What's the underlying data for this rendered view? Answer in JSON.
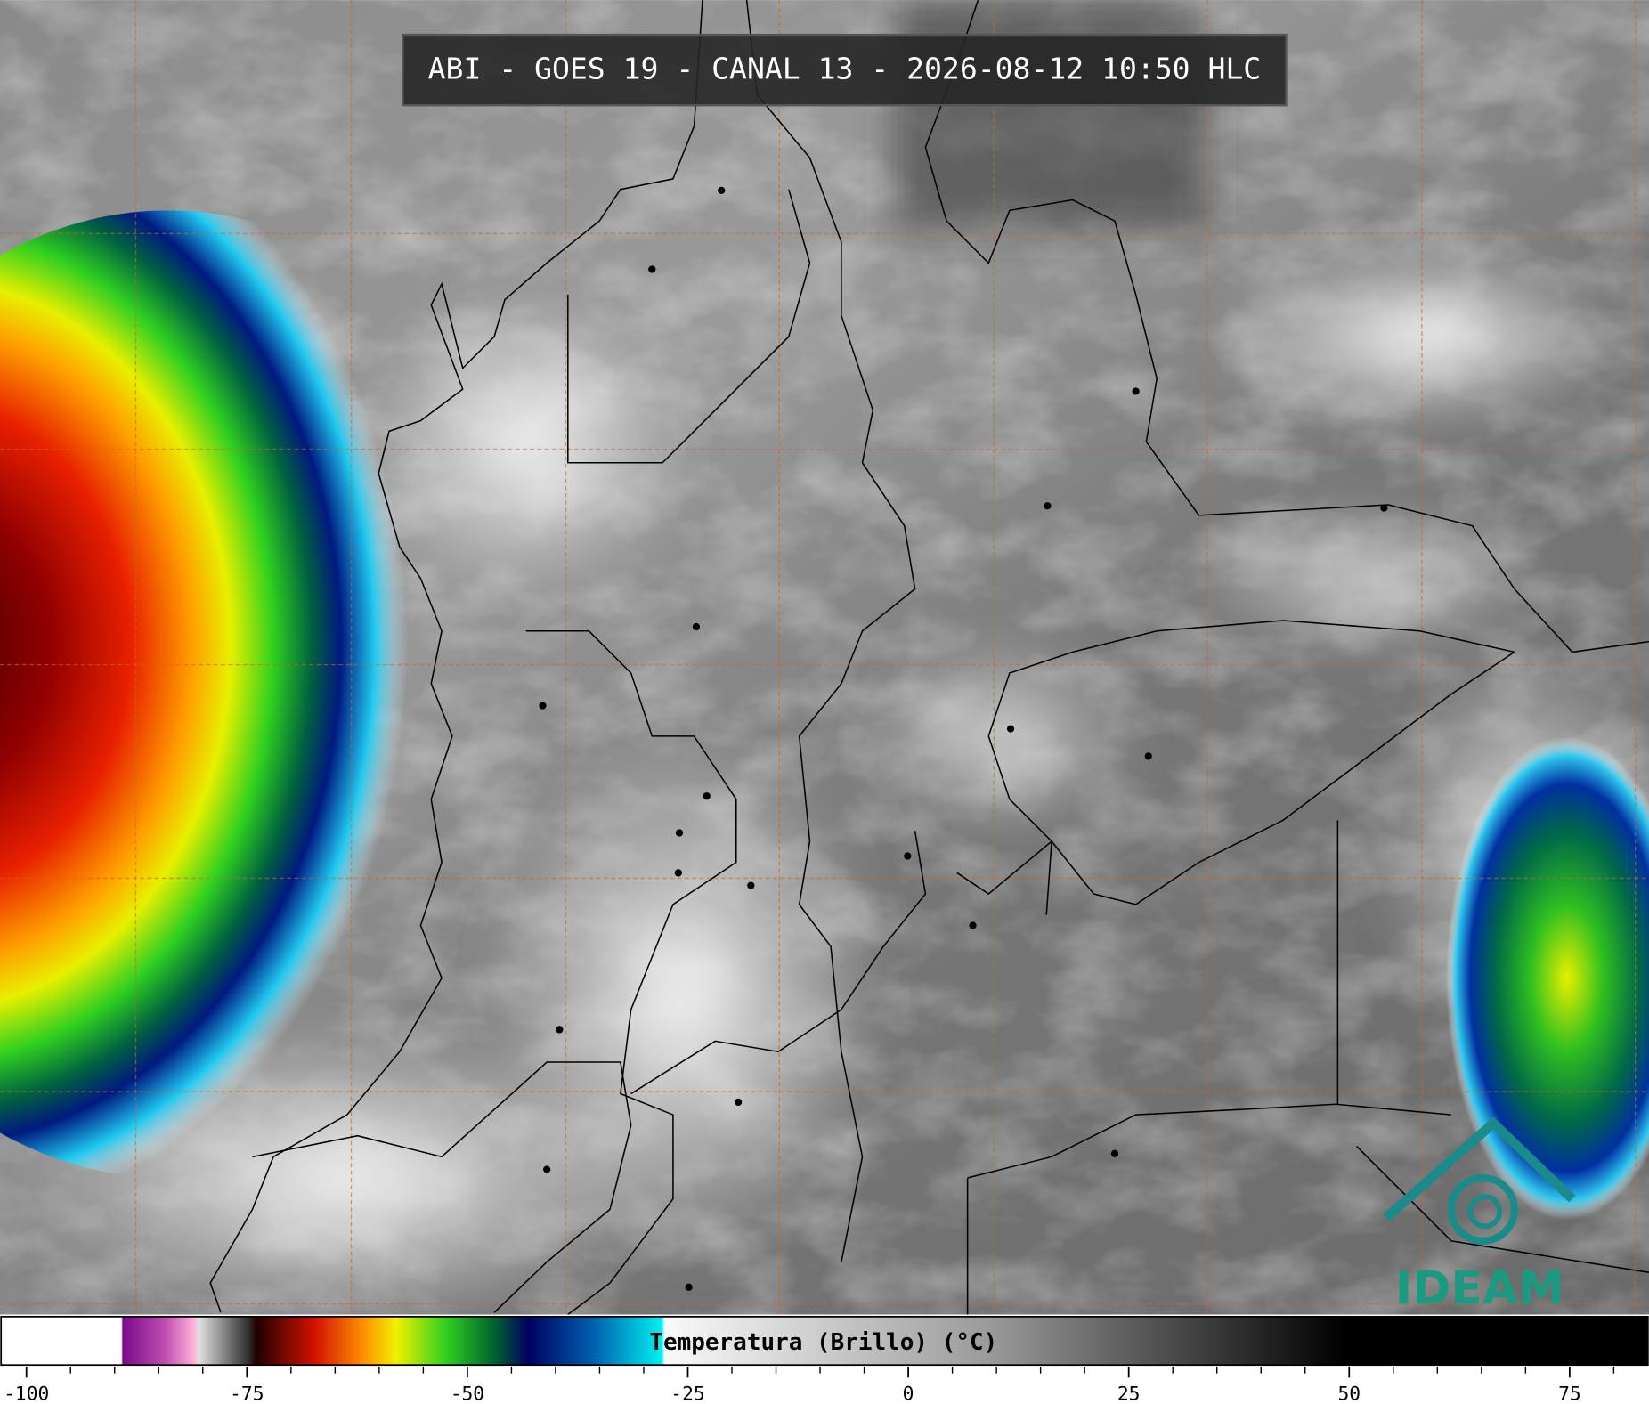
{
  "header": {
    "title": "ABI - GOES 19 - CANAL 13 - 2026-08-12 10:50 HLC"
  },
  "colorbar": {
    "label": "Temperatura (Brillo) (°C)",
    "range": [
      -103,
      84
    ],
    "ticks": [
      -100,
      -75,
      -50,
      -25,
      0,
      25,
      50,
      75
    ],
    "minor_ticks": [
      -95,
      -90,
      -85,
      -80,
      -70,
      -65,
      -60,
      -55,
      -45,
      -40,
      -35,
      -30,
      -20,
      -15,
      -10,
      -5,
      5,
      10,
      15,
      20,
      30,
      35,
      40,
      45,
      55,
      60,
      65,
      70,
      80
    ]
  },
  "logo": {
    "text": "IDEAM"
  }
}
